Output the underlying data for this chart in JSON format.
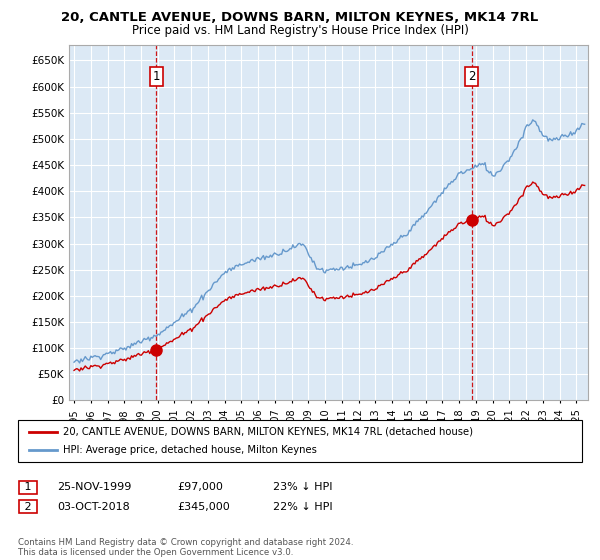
{
  "title_line1": "20, CANTLE AVENUE, DOWNS BARN, MILTON KEYNES, MK14 7RL",
  "title_line2": "Price paid vs. HM Land Registry's House Price Index (HPI)",
  "ylim": [
    0,
    680000
  ],
  "yticks": [
    0,
    50000,
    100000,
    150000,
    200000,
    250000,
    300000,
    350000,
    400000,
    450000,
    500000,
    550000,
    600000,
    650000
  ],
  "sale1_date": 1999.92,
  "sale1_price": 97000,
  "sale1_label": "1",
  "sale2_date": 2018.75,
  "sale2_price": 345000,
  "sale2_label": "2",
  "legend_line1": "20, CANTLE AVENUE, DOWNS BARN, MILTON KEYNES, MK14 7RL (detached house)",
  "legend_line2": "HPI: Average price, detached house, Milton Keynes",
  "footnote": "Contains HM Land Registry data © Crown copyright and database right 2024.\nThis data is licensed under the Open Government Licence v3.0.",
  "red_color": "#cc0000",
  "blue_color": "#6699cc",
  "background_color": "#ffffff",
  "plot_bg_color": "#dce9f5",
  "grid_color": "#ffffff"
}
